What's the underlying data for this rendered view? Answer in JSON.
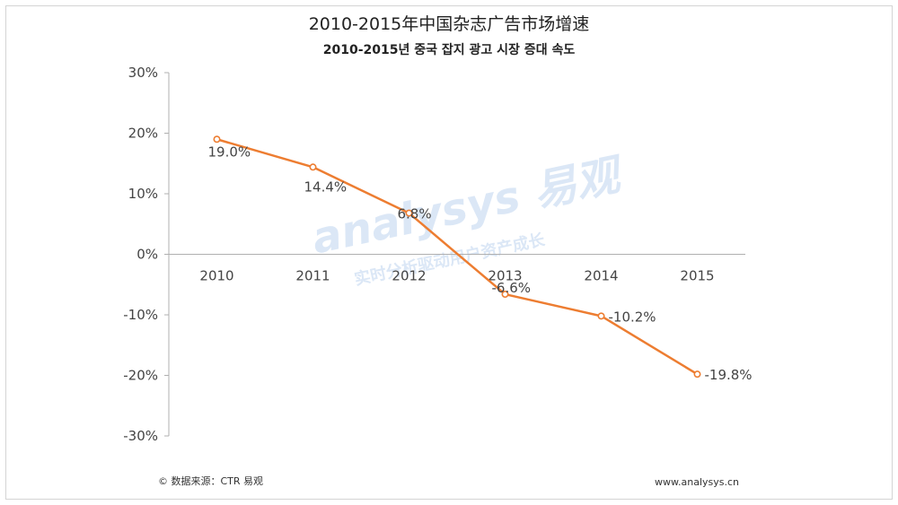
{
  "watermark": {
    "logo": "analysys 易观",
    "tagline": "实时分析驱动用户资产成长"
  },
  "chart_data": {
    "type": "line",
    "title": "2010-2015年中国杂志广告市场增速",
    "subtitle": "2010-2015년 중국 잡지 광고 시장 증대 속도",
    "categories": [
      "2010",
      "2011",
      "2012",
      "2013",
      "2014",
      "2015"
    ],
    "series": [
      {
        "name": "增速",
        "values": [
          19.0,
          14.4,
          6.8,
          -6.6,
          -10.2,
          -19.8
        ],
        "labels": [
          "19.0%",
          "14.4%",
          "6.8%",
          "-6.6%",
          "-10.2%",
          "-19.8%"
        ]
      }
    ],
    "ylim": [
      -30,
      30
    ],
    "yticks": [
      30,
      20,
      10,
      0,
      -10,
      -20,
      -30
    ],
    "ytick_labels": [
      "30%",
      "20%",
      "10%",
      "0%",
      "-10%",
      "-20%",
      "-30%"
    ],
    "xlabel": "",
    "ylabel": "",
    "line_color": "#ed7d31"
  },
  "footer": {
    "source": "© 数据来源：CTR 易观",
    "website": "www.analysys.cn"
  }
}
